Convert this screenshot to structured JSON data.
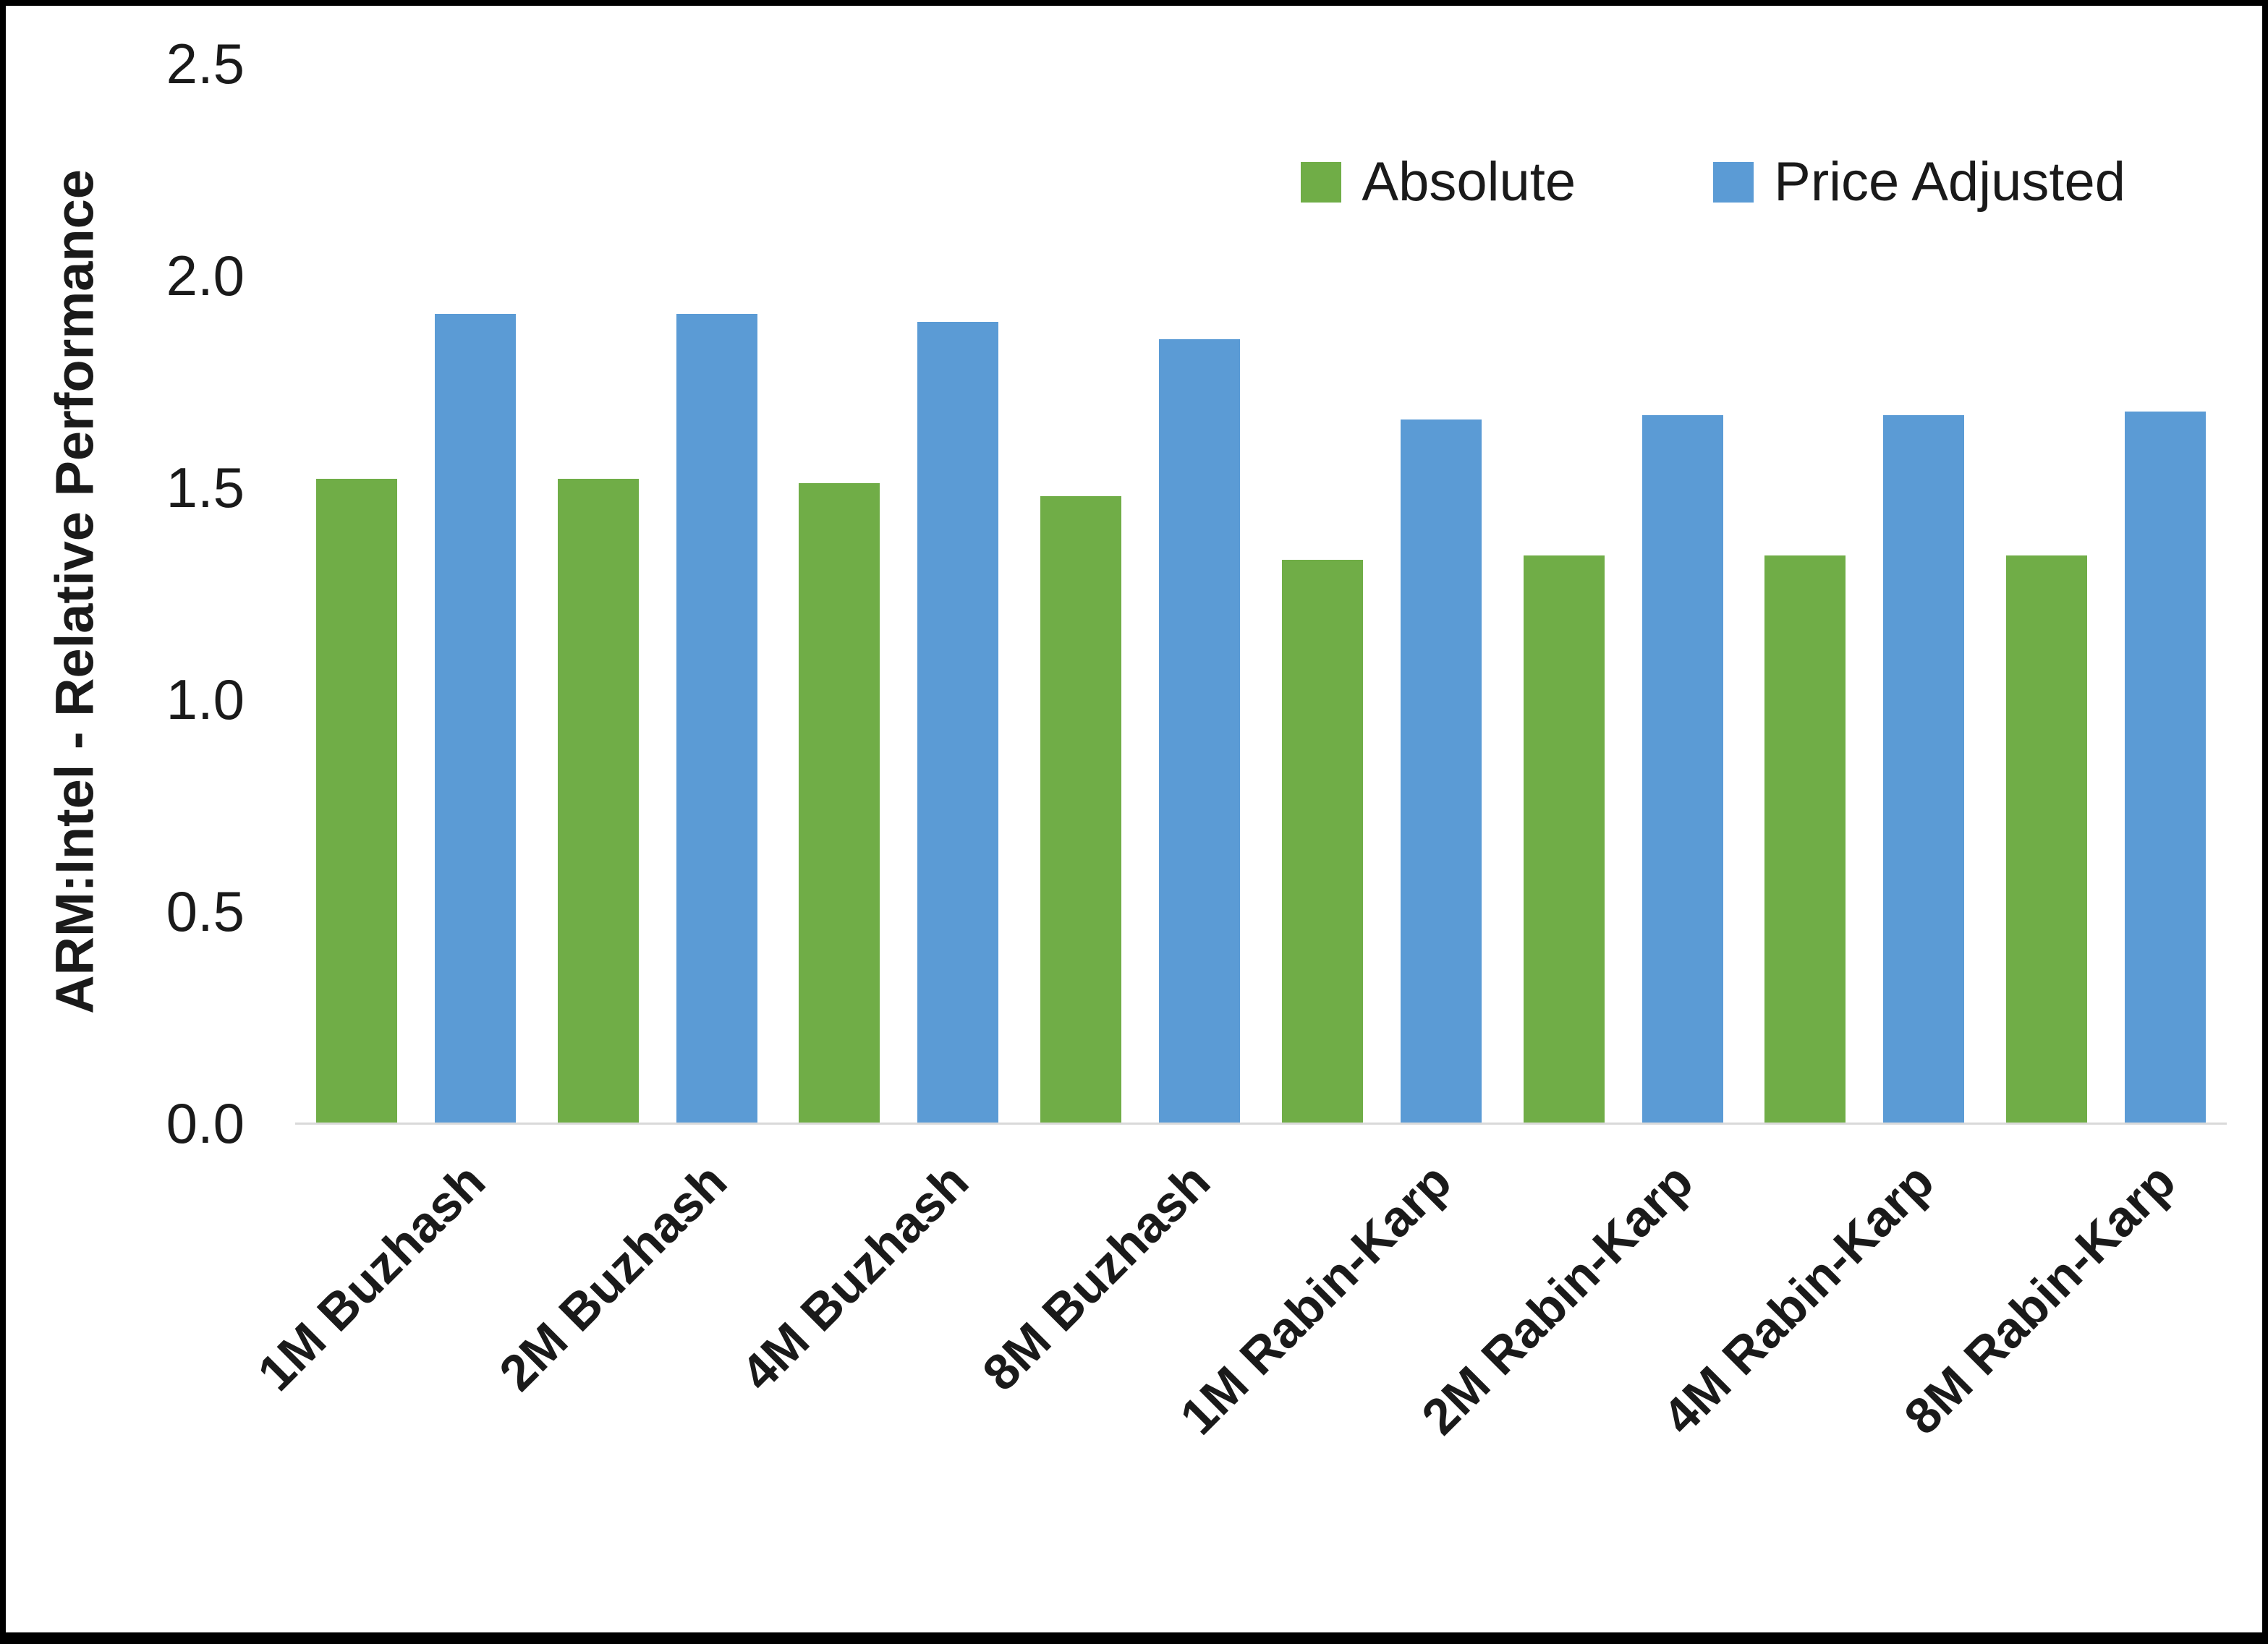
{
  "chart_data": {
    "type": "bar",
    "title": "",
    "xlabel": "",
    "ylabel": "ARM:Intel - Relative Performance",
    "ylim": [
      0,
      2.5
    ],
    "y_ticks": [
      0.0,
      0.5,
      1.0,
      1.5,
      2.0,
      2.5
    ],
    "y_tick_labels": [
      "0.0",
      "0.5",
      "1.0",
      "1.5",
      "2.0",
      "2.5"
    ],
    "grid": false,
    "legend_position": "top-right",
    "categories": [
      "1M Buzhash",
      "2M Buzhash",
      "4M Buzhash",
      "8M Buzhash",
      "1M Rabin-Karp",
      "2M Rabin-Karp",
      "4M Rabin-Karp",
      "8M Rabin-Karp"
    ],
    "series": [
      {
        "name": "Absolute",
        "color": "#70AD47",
        "values": [
          1.52,
          1.52,
          1.51,
          1.48,
          1.33,
          1.34,
          1.34,
          1.34
        ]
      },
      {
        "name": "Price Adjusted",
        "color": "#5B9BD5",
        "values": [
          1.91,
          1.91,
          1.89,
          1.85,
          1.66,
          1.67,
          1.67,
          1.68
        ]
      }
    ]
  },
  "colors": {
    "background": "#ffffff",
    "border": "#000000",
    "axis_line": "#d9d9d9",
    "text": "#1a1a1a"
  }
}
